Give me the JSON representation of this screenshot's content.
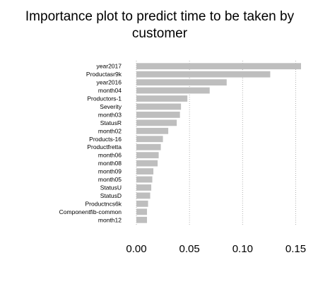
{
  "chart_data": {
    "type": "bar",
    "orientation": "horizontal",
    "title": "Importance plot to predict time to be taken by customer",
    "categories": [
      "year2017",
      "Productasr9k",
      "year2016",
      "month04",
      "Productors-1",
      "Severity",
      "month03",
      "StatusR",
      "month02",
      "Products-16",
      "Productfretta",
      "month06",
      "month08",
      "month09",
      "month05",
      "StatusU",
      "StatusD",
      "Productncs6k",
      "Componentfib-common",
      "month12"
    ],
    "values": [
      0.155,
      0.126,
      0.085,
      0.069,
      0.048,
      0.042,
      0.041,
      0.038,
      0.03,
      0.025,
      0.023,
      0.021,
      0.02,
      0.016,
      0.015,
      0.014,
      0.013,
      0.011,
      0.01,
      0.01
    ],
    "xlim": [
      0,
      0.155
    ],
    "xticks": [
      "0.00",
      "0.05",
      "0.10",
      "0.15"
    ],
    "xtick_values": [
      0,
      0.05,
      0.1,
      0.15
    ],
    "grid": "dotted vertical lines at tick positions",
    "bar_color": "#bebebe",
    "xlabel": "",
    "ylabel": ""
  }
}
